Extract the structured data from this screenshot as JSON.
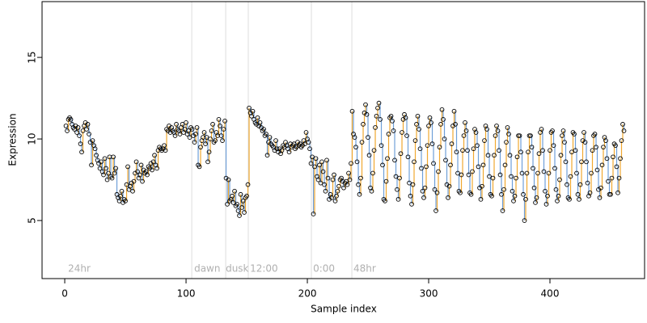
{
  "chart_data": {
    "type": "scatter",
    "x_label": "Sample index",
    "y_label": "Expression",
    "xlim": [
      -18.7,
      478
    ],
    "ylim": [
      1.44,
      18.42
    ],
    "xticks": [
      0,
      100,
      200,
      300,
      400
    ],
    "yticks": [
      5,
      10,
      15
    ],
    "up_color": "#f0a830",
    "down_color": "#6f9fd8",
    "point_color": "#000000",
    "vline_color": "#dddddd",
    "vlines": [
      104.7,
      132.7,
      151.3,
      203.3,
      236.7
    ],
    "annotations": [
      {
        "x": 2.7,
        "label": "24hr"
      },
      {
        "x": 106.7,
        "label": "dawn"
      },
      {
        "x": 132.7,
        "label": "dusk"
      },
      {
        "x": 152.7,
        "label": "12:00"
      },
      {
        "x": 204.7,
        "label": "0:00"
      },
      {
        "x": 238,
        "label": "48hr"
      }
    ],
    "x": [
      1,
      2,
      3,
      4,
      5,
      6,
      7,
      8,
      9,
      10,
      11,
      12,
      13,
      14,
      15,
      16,
      17,
      18,
      19,
      20,
      21,
      22,
      23,
      24,
      25,
      26,
      27,
      28,
      29,
      30,
      31,
      32,
      33,
      34,
      35,
      36,
      37,
      38,
      39,
      40,
      41,
      42,
      43,
      44,
      45,
      46,
      47,
      48,
      49,
      50,
      51,
      52,
      53,
      54,
      55,
      56,
      57,
      58,
      59,
      60,
      61,
      62,
      63,
      64,
      65,
      66,
      67,
      68,
      69,
      70,
      71,
      72,
      73,
      74,
      75,
      76,
      77,
      78,
      79,
      80,
      81,
      82,
      83,
      84,
      85,
      86,
      87,
      88,
      89,
      90,
      91,
      92,
      93,
      94,
      95,
      96,
      97,
      98,
      99,
      100,
      101,
      102,
      103,
      104,
      105,
      106,
      107,
      108,
      109,
      110,
      111,
      112,
      113,
      114,
      115,
      116,
      117,
      118,
      119,
      120,
      121,
      122,
      123,
      124,
      125,
      126,
      127,
      128,
      129,
      130,
      131,
      132,
      133,
      134,
      135,
      136,
      137,
      138,
      139,
      140,
      141,
      142,
      143,
      144,
      145,
      146,
      147,
      148,
      149,
      150,
      151,
      152,
      153,
      154,
      155,
      156,
      157,
      158,
      159,
      160,
      161,
      162,
      163,
      164,
      165,
      166,
      167,
      168,
      169,
      170,
      171,
      172,
      173,
      174,
      175,
      176,
      177,
      178,
      179,
      180,
      181,
      182,
      183,
      184,
      185,
      186,
      187,
      188,
      189,
      190,
      191,
      192,
      193,
      194,
      195,
      196,
      197,
      198,
      199,
      200,
      201,
      202,
      203,
      204,
      205,
      206,
      207,
      208,
      209,
      210,
      211,
      212,
      213,
      214,
      215,
      216,
      217,
      218,
      219,
      220,
      221,
      222,
      223,
      224,
      225,
      226,
      227,
      228,
      229,
      230,
      231,
      232,
      233,
      234,
      235,
      236,
      237,
      238,
      239,
      240,
      241,
      242,
      243,
      244,
      245,
      246,
      247,
      248,
      249,
      250,
      251,
      252,
      253,
      254,
      255,
      256,
      257,
      258,
      259,
      260,
      261,
      262,
      263,
      264,
      265,
      266,
      267,
      268,
      269,
      270,
      271,
      272,
      273,
      274,
      275,
      276,
      277,
      278,
      279,
      280,
      281,
      282,
      283,
      284,
      285,
      286,
      287,
      288,
      289,
      290,
      291,
      292,
      293,
      294,
      295,
      296,
      297,
      298,
      299,
      300,
      301,
      302,
      303,
      304,
      305,
      306,
      307,
      308,
      309,
      310,
      311,
      312,
      313,
      314,
      315,
      316,
      317,
      318,
      319,
      320,
      321,
      322,
      323,
      324,
      325,
      326,
      327,
      328,
      329,
      330,
      331,
      332,
      333,
      334,
      335,
      336,
      337,
      338,
      339,
      340,
      341,
      342,
      343,
      344,
      345,
      346,
      347,
      348,
      349,
      350,
      351,
      352,
      353,
      354,
      355,
      356,
      357,
      358,
      359,
      360,
      361,
      362,
      363,
      364,
      365,
      366,
      367,
      368,
      369,
      370,
      371,
      372,
      373,
      374,
      375,
      376,
      377,
      378,
      379,
      380,
      381,
      382,
      383,
      384,
      385,
      386,
      387,
      388,
      389,
      390,
      391,
      392,
      393,
      394,
      395,
      396,
      397,
      398,
      399,
      400,
      401,
      402,
      403,
      404,
      405,
      406,
      407,
      408,
      409,
      410,
      411,
      412,
      413,
      414,
      415,
      416,
      417,
      418,
      419,
      420,
      421,
      422,
      423,
      424,
      425,
      426,
      427,
      428,
      429,
      430,
      431,
      432,
      433,
      434,
      435,
      436,
      437,
      438,
      439,
      440,
      441,
      442,
      443,
      444,
      445,
      446,
      447,
      448,
      449,
      450,
      451,
      452,
      453,
      454,
      455,
      456,
      457,
      458,
      459,
      460,
      461
    ],
    "values": [
      10.8,
      10.5,
      11.2,
      11.3,
      11.2,
      10.9,
      10.7,
      10.6,
      10.8,
      10.4,
      10.7,
      10.2,
      9.7,
      9.2,
      10.5,
      10.8,
      11.0,
      10.6,
      10.9,
      10.3,
      9.8,
      8.4,
      9.9,
      9.6,
      9.4,
      9.0,
      8.7,
      8.5,
      8.2,
      8.6,
      8.0,
      7.8,
      8.8,
      8.2,
      7.5,
      7.9,
      8.9,
      7.7,
      7.6,
      8.9,
      7.9,
      8.2,
      6.6,
      6.4,
      6.2,
      6.5,
      6.8,
      6.1,
      6.3,
      6.2,
      7.2,
      8.3,
      6.9,
      7.1,
      7.3,
      6.8,
      7.4,
      7.9,
      8.6,
      8.0,
      7.6,
      7.8,
      8.4,
      7.4,
      8.1,
      7.9,
      8.0,
      7.8,
      8.3,
      8.2,
      8.5,
      8.1,
      8.6,
      9.0,
      8.4,
      8.2,
      9.3,
      9.5,
      9.4,
      9.3,
      9.4,
      9.6,
      9.3,
      10.6,
      10.5,
      10.8,
      10.4,
      10.7,
      10.5,
      10.4,
      10.2,
      10.9,
      10.6,
      10.5,
      10.3,
      10.7,
      10.9,
      10.4,
      10.6,
      11.0,
      10.3,
      10.5,
      10.1,
      10.7,
      10.6,
      10.2,
      9.8,
      10.3,
      10.7,
      8.4,
      8.3,
      9.5,
      9.9,
      10.1,
      10.4,
      9.7,
      10.1,
      8.6,
      9.2,
      10.0,
      10.5,
      10.9,
      9.8,
      9.9,
      10.4,
      10.2,
      11.2,
      10.8,
      10.2,
      9.9,
      10.6,
      11.1,
      7.6,
      6.0,
      7.5,
      6.2,
      6.3,
      6.5,
      6.1,
      6.8,
      5.9,
      6.0,
      5.6,
      5.3,
      6.6,
      5.8,
      6.2,
      5.5,
      6.4,
      6.5,
      7.2,
      11.9,
      11.6,
      11.4,
      11.7,
      11.2,
      11.0,
      10.9,
      11.3,
      10.8,
      11.0,
      10.7,
      10.5,
      10.6,
      10.2,
      10.3,
      9.0,
      9.8,
      10.1,
      9.7,
      9.6,
      9.5,
      9.3,
      9.9,
      9.4,
      9.2,
      9.4,
      9.1,
      9.3,
      9.6,
      9.5,
      9.8,
      9.6,
      9.4,
      9.2,
      9.7,
      9.5,
      9.6,
      9.7,
      9.4,
      9.5,
      9.8,
      9.6,
      9.7,
      9.5,
      9.6,
      9.9,
      9.7,
      10.4,
      10.0,
      9.8,
      9.4,
      8.5,
      8.9,
      5.4,
      8.3,
      8.8,
      7.7,
      7.5,
      8.4,
      7.3,
      8.6,
      8.0,
      7.2,
      6.8,
      8.7,
      7.6,
      6.3,
      6.6,
      6.4,
      7.5,
      7.8,
      6.2,
      6.5,
      6.8,
      7.1,
      7.5,
      7.6,
      7.4,
      7.0,
      7.3,
      7.4,
      7.2,
      7.9,
      7.5,
      8.5,
      11.7,
      10.3,
      10.1,
      9.5,
      8.6,
      7.2,
      6.6,
      7.6,
      9.8,
      10.9,
      11.6,
      12.1,
      11.5,
      10.1,
      9.0,
      7.0,
      6.8,
      7.9,
      9.3,
      10.7,
      11.4,
      11.9,
      12.2,
      11.2,
      9.6,
      8.4,
      6.3,
      6.2,
      7.4,
      8.8,
      10.3,
      11.3,
      11.4,
      11.1,
      10.5,
      8.7,
      7.7,
      6.9,
      6.3,
      7.6,
      9.1,
      10.4,
      11.2,
      11.5,
      11.3,
      10.2,
      8.9,
      7.3,
      6.5,
      6.0,
      7.2,
      8.6,
      9.9,
      10.9,
      11.4,
      10.6,
      9.4,
      8.2,
      6.8,
      6.4,
      7.0,
      8.3,
      9.6,
      10.8,
      11.3,
      11.0,
      9.7,
      8.5,
      6.9,
      5.6,
      6.7,
      8.0,
      9.5,
      10.9,
      11.8,
      11.2,
      10.0,
      8.7,
      7.2,
      6.4,
      7.1,
      8.4,
      9.7,
      10.8,
      11.7,
      10.9,
      9.2,
      7.9,
      6.8,
      6.7,
      7.8,
      9.3,
      10.2,
      11.0,
      10.5,
      9.3,
      7.8,
      6.7,
      6.6,
      8.0,
      9.4,
      10.6,
      10.4,
      9.6,
      8.3,
      7.0,
      6.3,
      7.1,
      8.4,
      9.9,
      10.8,
      10.6,
      9.0,
      7.7,
      6.6,
      6.5,
      7.6,
      9.0,
      10.2,
      10.8,
      10.5,
      9.3,
      7.8,
      6.6,
      5.6,
      6.9,
      8.4,
      9.8,
      10.7,
      10.3,
      9.0,
      7.7,
      6.8,
      6.2,
      6.5,
      7.6,
      8.9,
      10.2,
      10.2,
      9.2,
      7.9,
      6.6,
      5.0,
      6.3,
      7.9,
      9.2,
      10.2,
      10.2,
      9.5,
      8.2,
      7.0,
      6.1,
      6.4,
      7.9,
      9.1,
      10.4,
      10.6,
      9.3,
      8.0,
      6.8,
      6.0,
      6.5,
      7.9,
      9.3,
      10.4,
      10.5,
      9.6,
      8.2,
      6.9,
      6.2,
      6.5,
      7.5,
      9.0,
      10.2,
      10.5,
      9.8,
      8.6,
      7.2,
      6.4,
      6.3,
      7.7,
      9.2,
      10.4,
      10.3,
      9.3,
      7.9,
      6.6,
      6.3,
      7.2,
      8.6,
      9.9,
      10.4,
      9.8,
      8.6,
      7.3,
      6.5,
      6.7,
      7.9,
      9.3,
      10.2,
      10.3,
      9.5,
      8.1,
      6.9,
      6.4,
      7.0,
      8.4,
      9.5,
      10.1,
      9.9,
      8.8,
      7.4,
      6.6,
      6.6,
      7.6,
      8.9,
      9.7,
      9.6,
      8.3,
      6.7,
      7.6,
      8.8,
      9.9,
      10.9,
      10.5
    ]
  }
}
